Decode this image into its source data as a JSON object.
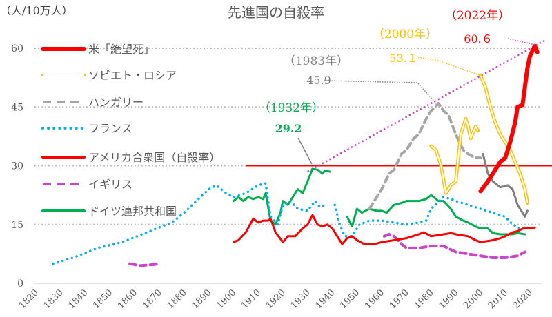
{
  "chart_data": {
    "type": "line",
    "title": "先進国の自殺率",
    "ylabel": "（人/10万人）",
    "xlim": [
      1820,
      2025
    ],
    "ylim": [
      0,
      62
    ],
    "xticks": [
      1820,
      1830,
      1840,
      1850,
      1860,
      1870,
      1880,
      1890,
      1900,
      1910,
      1920,
      1930,
      1940,
      1950,
      1960,
      1970,
      1980,
      1990,
      2000,
      2010,
      2020
    ],
    "yticks": [
      0,
      15,
      30,
      45,
      60
    ],
    "grid": "horizontal dotted",
    "legend": "top-left",
    "series": [
      {
        "name": "米「絶望死」",
        "color": "#ff0000",
        "style": "thick",
        "segments": [
          [
            [
              2000,
              23.5
            ],
            [
              2003,
              26
            ],
            [
              2005,
              28
            ],
            [
              2008,
              31
            ],
            [
              2010,
              32
            ],
            [
              2012,
              36
            ],
            [
              2014,
              41
            ],
            [
              2015,
              45
            ],
            [
              2017,
              45.5
            ],
            [
              2019,
              55
            ],
            [
              2020,
              58
            ],
            [
              2022,
              60.6
            ],
            [
              2023,
              59
            ]
          ]
        ]
      },
      {
        "name": "ソビエト・ロシア",
        "color": "#ffc000",
        "style": "double",
        "segments": [
          [
            [
              1980,
              35
            ],
            [
              1982,
              34
            ],
            [
              1984,
              30
            ],
            [
              1986,
              23
            ],
            [
              1988,
              25
            ],
            [
              1990,
              26
            ],
            [
              1992,
              38
            ],
            [
              1994,
              42
            ],
            [
              1995,
              40
            ],
            [
              1996,
              37
            ],
            [
              1998,
              40
            ],
            [
              1999,
              39
            ]
          ],
          [
            [
              2000,
              53.1
            ],
            [
              2002,
              50
            ],
            [
              2004,
              45
            ],
            [
              2006,
              41
            ],
            [
              2008,
              38
            ],
            [
              2010,
              36
            ],
            [
              2012,
              34
            ],
            [
              2014,
              31
            ],
            [
              2016,
              28
            ],
            [
              2018,
              24
            ],
            [
              2019,
              20.5
            ]
          ]
        ]
      },
      {
        "name": "ハンガリー",
        "color": "#a6a6a6",
        "style": "dash",
        "segments": [
          [
            [
              1955,
              19
            ],
            [
              1958,
              22
            ],
            [
              1960,
              24
            ],
            [
              1963,
              28
            ],
            [
              1965,
              29
            ],
            [
              1968,
              33
            ],
            [
              1970,
              34
            ],
            [
              1973,
              37
            ],
            [
              1975,
              38
            ],
            [
              1978,
              42
            ],
            [
              1980,
              44
            ],
            [
              1983,
              45.9
            ],
            [
              1985,
              44
            ],
            [
              1987,
              43
            ],
            [
              1990,
              38
            ],
            [
              1993,
              34
            ],
            [
              1995,
              33
            ],
            [
              1998,
              32
            ],
            [
              2000,
              32
            ]
          ]
        ]
      },
      {
        "name": "",
        "color": "#7f7f7f",
        "style": "solid",
        "segments": [
          [
            [
              2001,
              33
            ],
            [
              2003,
              28
            ],
            [
              2005,
              26
            ],
            [
              2008,
              24.5
            ],
            [
              2011,
              25
            ],
            [
              2013,
              24
            ],
            [
              2015,
              20
            ],
            [
              2017,
              18
            ],
            [
              2018,
              17
            ],
            [
              2019,
              18.5
            ]
          ]
        ]
      },
      {
        "name": "フランス",
        "color": "#00b0f0",
        "style": "dot",
        "segments": [
          [
            [
              1827,
              5
            ],
            [
              1835,
              6.5
            ],
            [
              1845,
              9
            ],
            [
              1855,
              10.5
            ],
            [
              1865,
              13
            ],
            [
              1875,
              15.5
            ],
            [
              1880,
              18
            ],
            [
              1885,
              21
            ],
            [
              1890,
              24
            ],
            [
              1893,
              25
            ],
            [
              1897,
              23
            ],
            [
              1900,
              22
            ],
            [
              1905,
              23
            ],
            [
              1910,
              25
            ],
            [
              1913,
              25.5
            ],
            [
              1915,
              17
            ],
            [
              1918,
              15
            ],
            [
              1920,
              20
            ],
            [
              1923,
              21
            ],
            [
              1926,
              19
            ],
            [
              1930,
              18.5
            ],
            [
              1933,
              21
            ],
            [
              1935,
              19.5
            ],
            [
              1938,
              20
            ]
          ],
          [
            [
              1941,
              20
            ],
            [
              1943,
              15
            ],
            [
              1945,
              12
            ],
            [
              1948,
              12
            ],
            [
              1951,
              15
            ],
            [
              1955,
              16
            ],
            [
              1960,
              16
            ],
            [
              1965,
              15.5
            ],
            [
              1970,
              15
            ],
            [
              1975,
              15.5
            ],
            [
              1978,
              16
            ],
            [
              1980,
              19
            ],
            [
              1985,
              22
            ],
            [
              1988,
              21.5
            ],
            [
              1990,
              21
            ],
            [
              1995,
              20
            ],
            [
              2000,
              19
            ],
            [
              2005,
              18
            ],
            [
              2010,
              17
            ],
            [
              2013,
              15
            ],
            [
              2016,
              14
            ]
          ]
        ]
      },
      {
        "name": "アメリカ合衆国（自殺率）",
        "color": "#ff0000",
        "style": "solid",
        "segments": [
          [
            [
              1900,
              10.5
            ],
            [
              1902,
              11
            ],
            [
              1905,
              13
            ],
            [
              1908,
              16.5
            ],
            [
              1910,
              15.5
            ],
            [
              1912,
              16
            ],
            [
              1914,
              16
            ],
            [
              1915,
              16.5
            ],
            [
              1917,
              13
            ],
            [
              1920,
              10.5
            ],
            [
              1922,
              12
            ],
            [
              1925,
              12
            ],
            [
              1928,
              14
            ],
            [
              1930,
              15
            ],
            [
              1932,
              17.4
            ],
            [
              1934,
              15
            ],
            [
              1936,
              14.5
            ],
            [
              1938,
              15
            ],
            [
              1940,
              14
            ],
            [
              1942,
              12
            ],
            [
              1944,
              10
            ],
            [
              1946,
              11.5
            ],
            [
              1948,
              12
            ],
            [
              1950,
              11
            ],
            [
              1953,
              10
            ],
            [
              1957,
              10
            ],
            [
              1960,
              10.5
            ],
            [
              1965,
              11
            ],
            [
              1970,
              11.5
            ],
            [
              1975,
              12.5
            ],
            [
              1977,
              13
            ],
            [
              1980,
              12
            ],
            [
              1985,
              12.5
            ],
            [
              1988,
              12.8
            ],
            [
              1990,
              12.5
            ],
            [
              1995,
              12
            ],
            [
              1998,
              11
            ],
            [
              2000,
              10.5
            ],
            [
              2005,
              11
            ],
            [
              2008,
              11.5
            ],
            [
              2010,
              12
            ],
            [
              2013,
              13
            ],
            [
              2015,
              13.3
            ],
            [
              2018,
              14.2
            ],
            [
              2019,
              14
            ],
            [
              2022,
              14.2
            ]
          ]
        ]
      },
      {
        "name": "イギリス",
        "color": "#cc44cc",
        "style": "dash",
        "segments": [
          [
            [
              1858,
              5
            ],
            [
              1862,
              4.5
            ],
            [
              1868,
              4.8
            ],
            [
              1870,
              5
            ]
          ],
          [
            [
              1961,
              12
            ],
            [
              1963,
              12.5
            ],
            [
              1965,
              12
            ],
            [
              1968,
              10
            ],
            [
              1970,
              9
            ],
            [
              1975,
              9
            ],
            [
              1980,
              9.5
            ],
            [
              1985,
              9.5
            ],
            [
              1990,
              8
            ],
            [
              1995,
              7.5
            ],
            [
              2000,
              7
            ],
            [
              2005,
              6.5
            ],
            [
              2010,
              6.5
            ],
            [
              2015,
              7
            ],
            [
              2018,
              8
            ]
          ]
        ]
      },
      {
        "name": "ドイツ連邦共和国",
        "color": "#00b050",
        "style": "solid",
        "segments": [
          [
            [
              1900,
              21
            ],
            [
              1902,
              22
            ],
            [
              1904,
              21
            ],
            [
              1906,
              22
            ],
            [
              1908,
              21.5
            ],
            [
              1910,
              22
            ],
            [
              1912,
              21.5
            ],
            [
              1913,
              23
            ],
            [
              1915,
              16
            ],
            [
              1917,
              15
            ],
            [
              1919,
              18
            ],
            [
              1920,
              21
            ],
            [
              1922,
              20
            ],
            [
              1924,
              22
            ],
            [
              1926,
              24
            ],
            [
              1928,
              23
            ],
            [
              1930,
              26
            ],
            [
              1932,
              29.2
            ],
            [
              1934,
              29
            ],
            [
              1936,
              28
            ],
            [
              1937,
              28.7
            ],
            [
              1939,
              28.5
            ]
          ],
          [
            [
              1946,
              17
            ],
            [
              1948,
              14.5
            ],
            [
              1950,
              19
            ],
            [
              1952,
              18
            ],
            [
              1955,
              19
            ],
            [
              1958,
              18.5
            ],
            [
              1960,
              18.5
            ],
            [
              1962,
              18
            ],
            [
              1965,
              20
            ],
            [
              1968,
              20.5
            ],
            [
              1970,
              21
            ],
            [
              1973,
              21
            ],
            [
              1975,
              21
            ],
            [
              1978,
              21.5
            ],
            [
              1980,
              22.5
            ],
            [
              1983,
              21
            ],
            [
              1985,
              21
            ],
            [
              1988,
              19
            ],
            [
              1990,
              17
            ],
            [
              1993,
              16
            ],
            [
              1995,
              15.5
            ],
            [
              1998,
              14.5
            ],
            [
              2000,
              14
            ],
            [
              2003,
              14
            ],
            [
              2005,
              12.8
            ],
            [
              2008,
              12.5
            ],
            [
              2010,
              12.5
            ],
            [
              2013,
              12.5
            ],
            [
              2015,
              12.8
            ],
            [
              2018,
              12.5
            ]
          ]
        ]
      }
    ],
    "reference_line": {
      "value": 30,
      "color": "#ff0000",
      "from": 1905
    },
    "trend_line": {
      "from": [
        1932,
        29.2
      ],
      "to": [
        2022,
        60.6
      ],
      "color": "#cc44cc"
    },
    "annotations": [
      {
        "year_label": "（1932年）",
        "value_label": "29.2",
        "color": "#00b050"
      },
      {
        "year_label": "（1983年）",
        "value_label": "45.9",
        "color": "#7f7f7f"
      },
      {
        "year_label": "（2000年）",
        "value_label": "53.１",
        "color": "#ffc000"
      },
      {
        "year_label": "（2022年）",
        "value_label": "60.６",
        "color": "#ff0000"
      }
    ]
  }
}
